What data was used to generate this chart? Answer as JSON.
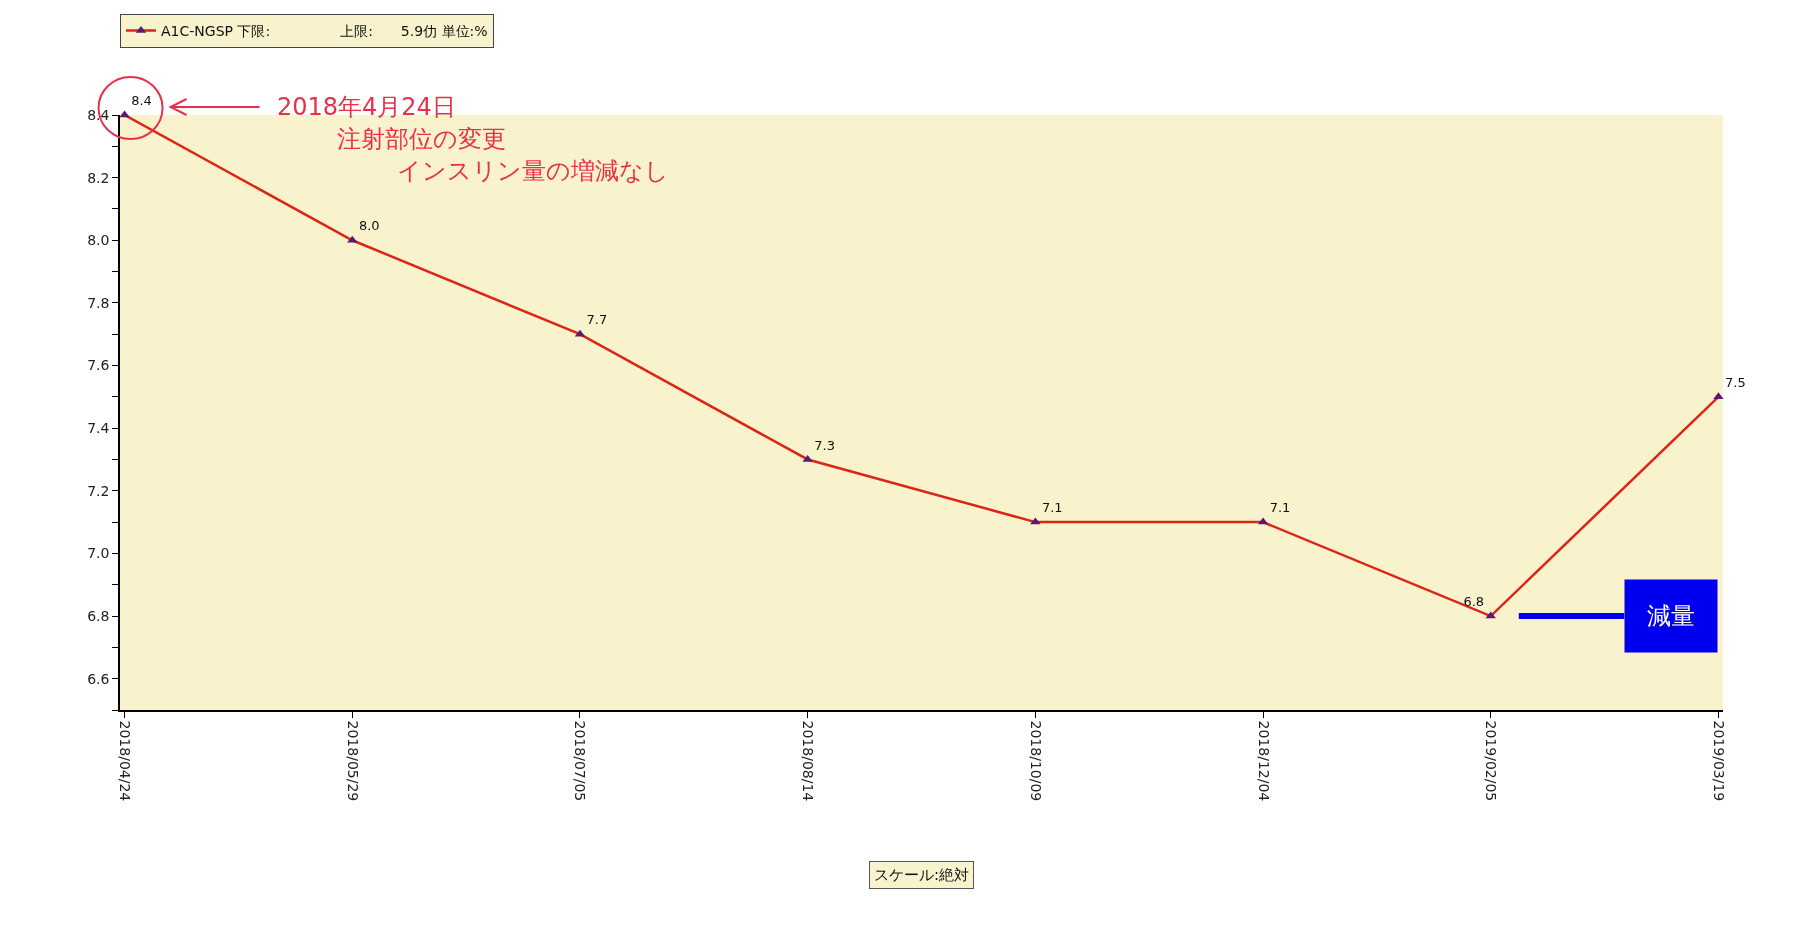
{
  "chart_data": {
    "type": "line",
    "categories": [
      "2018/04/24",
      "2018/05/29",
      "2018/07/05",
      "2018/08/14",
      "2018/10/09",
      "2018/12/04",
      "2019/02/05",
      "2019/03/19"
    ],
    "series": [
      {
        "name": "A1C-NGSP 下限:　　　　　上限:　　5.9仂 単位:%",
        "color": "#dd2418",
        "values": [
          8.4,
          8.0,
          7.7,
          7.3,
          7.1,
          7.1,
          6.8,
          7.5
        ],
        "value_labels": [
          "8.4",
          "8.0",
          "7.7",
          "7.3",
          "7.1",
          "7.1",
          "6.8",
          "7.5"
        ]
      }
    ],
    "ylim": [
      6.5,
      8.4
    ],
    "yticks": [
      {
        "value": 6.5,
        "label": null
      },
      6.6,
      {
        "value": 6.7,
        "label": null
      },
      6.8,
      {
        "value": 6.9,
        "label": null
      },
      {
        "value": 7,
        "label": "7.0"
      },
      {
        "value": 7.1,
        "label": null
      },
      7.2,
      {
        "value": 7.3,
        "label": null
      },
      7.4,
      {
        "value": 7.5,
        "label": null
      },
      7.6,
      {
        "value": 7.7,
        "label": null
      },
      7.8,
      {
        "value": 7.9,
        "label": null
      },
      {
        "value": 8,
        "label": "8.0"
      },
      {
        "value": 8.1,
        "label": null
      },
      8.2,
      {
        "value": 8.3,
        "label": null
      },
      8.4
    ],
    "annotations": [
      "2018年4月24日",
      "注射部位の変更",
      "インスリン量の増減なし",
      {
        "text": "減量",
        "x": "2019/02/05",
        "y": 6.8
      },
      "スケール:絶対"
    ],
    "marker": "triangle",
    "line_style": "solid",
    "grid": false,
    "legend": "top left"
  }
}
